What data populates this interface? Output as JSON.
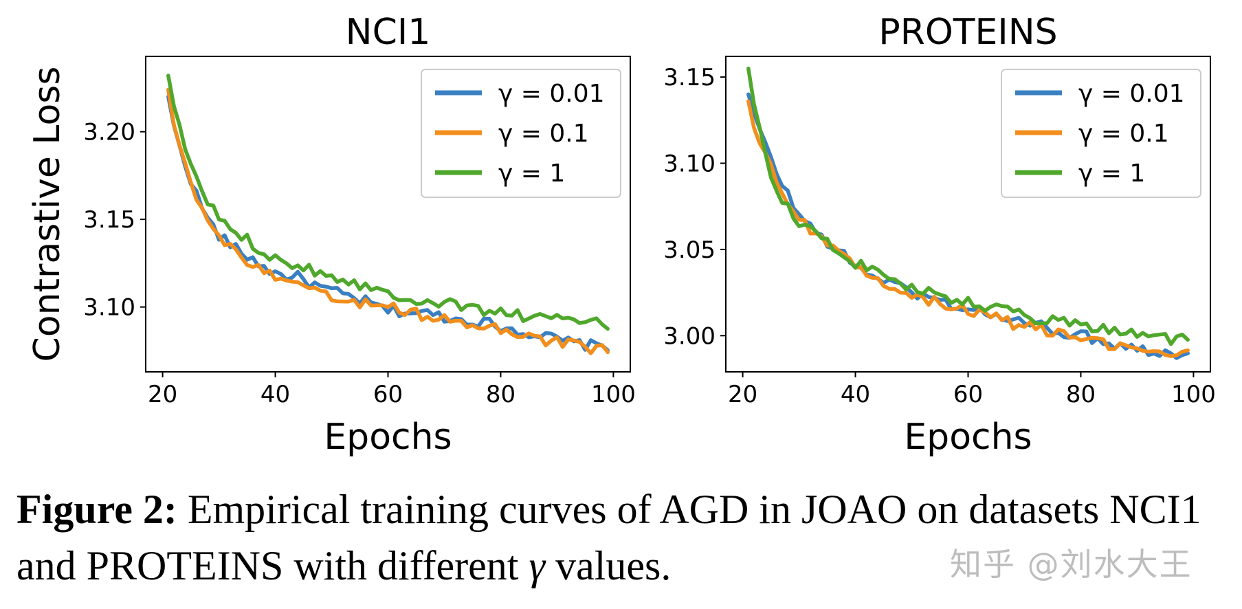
{
  "colors": {
    "s0": "#3a7fc1",
    "s1": "#f28e1c",
    "s2": "#4fa82c"
  },
  "chart_data": [
    {
      "type": "line",
      "title": "NCI1",
      "xlabel": "Epochs",
      "ylabel": "Contrastive Loss",
      "xlim": [
        17,
        103
      ],
      "ylim": [
        3.063,
        3.243
      ],
      "xticks": [
        20,
        40,
        60,
        80,
        100
      ],
      "yticks": [
        3.1,
        3.15,
        3.2
      ],
      "ytick_labels": [
        "3.10",
        "3.15",
        "3.20"
      ],
      "legend": "top-right",
      "grid": false,
      "series": [
        {
          "name": "γ = 0.01",
          "key": "s0",
          "anchors": [
            [
              21,
              3.22
            ],
            [
              22,
              3.202
            ],
            [
              24,
              3.182
            ],
            [
              26,
              3.164
            ],
            [
              28,
              3.15
            ],
            [
              30,
              3.141
            ],
            [
              33,
              3.133
            ],
            [
              36,
              3.127
            ],
            [
              40,
              3.119
            ],
            [
              44,
              3.117
            ],
            [
              48,
              3.111
            ],
            [
              52,
              3.107
            ],
            [
              56,
              3.103
            ],
            [
              60,
              3.098
            ],
            [
              64,
              3.097
            ],
            [
              68,
              3.096
            ],
            [
              72,
              3.093
            ],
            [
              76,
              3.092
            ],
            [
              80,
              3.089
            ],
            [
              84,
              3.086
            ],
            [
              88,
              3.083
            ],
            [
              92,
              3.08
            ],
            [
              96,
              3.078
            ],
            [
              99,
              3.078
            ]
          ]
        },
        {
          "name": "γ = 0.1",
          "key": "s1",
          "anchors": [
            [
              21,
              3.224
            ],
            [
              22,
              3.205
            ],
            [
              24,
              3.184
            ],
            [
              26,
              3.163
            ],
            [
              28,
              3.149
            ],
            [
              30,
              3.14
            ],
            [
              33,
              3.131
            ],
            [
              36,
              3.124
            ],
            [
              40,
              3.116
            ],
            [
              44,
              3.112
            ],
            [
              48,
              3.107
            ],
            [
              52,
              3.104
            ],
            [
              56,
              3.102
            ],
            [
              60,
              3.1
            ],
            [
              64,
              3.097
            ],
            [
              68,
              3.094
            ],
            [
              72,
              3.091
            ],
            [
              76,
              3.089
            ],
            [
              80,
              3.087
            ],
            [
              84,
              3.084
            ],
            [
              88,
              3.081
            ],
            [
              92,
              3.079
            ],
            [
              96,
              3.076
            ],
            [
              99,
              3.076
            ]
          ]
        },
        {
          "name": "γ = 1",
          "key": "s2",
          "anchors": [
            [
              21,
              3.232
            ],
            [
              22,
              3.212
            ],
            [
              24,
              3.192
            ],
            [
              26,
              3.172
            ],
            [
              28,
              3.16
            ],
            [
              30,
              3.151
            ],
            [
              33,
              3.143
            ],
            [
              36,
              3.136
            ],
            [
              40,
              3.128
            ],
            [
              44,
              3.124
            ],
            [
              48,
              3.12
            ],
            [
              52,
              3.116
            ],
            [
              56,
              3.112
            ],
            [
              60,
              3.108
            ],
            [
              64,
              3.105
            ],
            [
              68,
              3.103
            ],
            [
              72,
              3.101
            ],
            [
              76,
              3.099
            ],
            [
              80,
              3.097
            ],
            [
              84,
              3.095
            ],
            [
              88,
              3.094
            ],
            [
              92,
              3.092
            ],
            [
              96,
              3.091
            ],
            [
              99,
              3.09
            ]
          ]
        }
      ]
    },
    {
      "type": "line",
      "title": "PROTEINS",
      "xlabel": "Epochs",
      "ylabel": "",
      "xlim": [
        17,
        103
      ],
      "ylim": [
        2.979,
        3.162
      ],
      "xticks": [
        20,
        40,
        60,
        80,
        100
      ],
      "yticks": [
        3.0,
        3.05,
        3.1,
        3.15
      ],
      "ytick_labels": [
        "3.00",
        "3.05",
        "3.10",
        "3.15"
      ],
      "legend": "top-right",
      "grid": false,
      "series": [
        {
          "name": "γ = 0.01",
          "key": "s0",
          "anchors": [
            [
              21,
              3.14
            ],
            [
              22,
              3.128
            ],
            [
              24,
              3.11
            ],
            [
              26,
              3.095
            ],
            [
              28,
              3.082
            ],
            [
              30,
              3.07
            ],
            [
              33,
              3.06
            ],
            [
              36,
              3.052
            ],
            [
              40,
              3.04
            ],
            [
              44,
              3.034
            ],
            [
              48,
              3.028
            ],
            [
              52,
              3.023
            ],
            [
              56,
              3.019
            ],
            [
              60,
              3.016
            ],
            [
              64,
              3.012
            ],
            [
              68,
              3.009
            ],
            [
              72,
              3.006
            ],
            [
              76,
              3.003
            ],
            [
              80,
              3.0
            ],
            [
              84,
              2.997
            ],
            [
              88,
              2.994
            ],
            [
              92,
              2.992
            ],
            [
              96,
              2.99
            ],
            [
              99,
              2.989
            ]
          ]
        },
        {
          "name": "γ = 0.1",
          "key": "s1",
          "anchors": [
            [
              21,
              3.136
            ],
            [
              22,
              3.122
            ],
            [
              24,
              3.104
            ],
            [
              26,
              3.09
            ],
            [
              28,
              3.079
            ],
            [
              30,
              3.069
            ],
            [
              33,
              3.058
            ],
            [
              36,
              3.05
            ],
            [
              40,
              3.039
            ],
            [
              44,
              3.033
            ],
            [
              48,
              3.027
            ],
            [
              52,
              3.022
            ],
            [
              56,
              3.018
            ],
            [
              60,
              3.014
            ],
            [
              64,
              3.011
            ],
            [
              68,
              3.007
            ],
            [
              72,
              3.004
            ],
            [
              76,
              3.001
            ],
            [
              80,
              2.998
            ],
            [
              84,
              2.995
            ],
            [
              88,
              2.993
            ],
            [
              92,
              2.991
            ],
            [
              96,
              2.99
            ],
            [
              99,
              2.989
            ]
          ]
        },
        {
          "name": "γ = 1",
          "key": "s2",
          "anchors": [
            [
              21,
              3.155
            ],
            [
              22,
              3.132
            ],
            [
              24,
              3.104
            ],
            [
              26,
              3.085
            ],
            [
              28,
              3.075
            ],
            [
              30,
              3.066
            ],
            [
              33,
              3.059
            ],
            [
              36,
              3.052
            ],
            [
              40,
              3.042
            ],
            [
              44,
              3.036
            ],
            [
              48,
              3.031
            ],
            [
              52,
              3.026
            ],
            [
              56,
              3.022
            ],
            [
              60,
              3.019
            ],
            [
              64,
              3.016
            ],
            [
              68,
              3.013
            ],
            [
              72,
              3.01
            ],
            [
              76,
              3.008
            ],
            [
              80,
              3.006
            ],
            [
              84,
              3.004
            ],
            [
              88,
              3.002
            ],
            [
              92,
              3.0
            ],
            [
              96,
              2.998
            ],
            [
              99,
              2.998
            ]
          ]
        }
      ]
    }
  ],
  "caption": {
    "label": "Figure 2:",
    "text_part1": " Empirical training curves of AGD in JOAO on datasets NCI1 and PROTEINS with different ",
    "gamma": "γ",
    "text_part2": " values."
  },
  "watermark": "知乎 @刘水大王"
}
